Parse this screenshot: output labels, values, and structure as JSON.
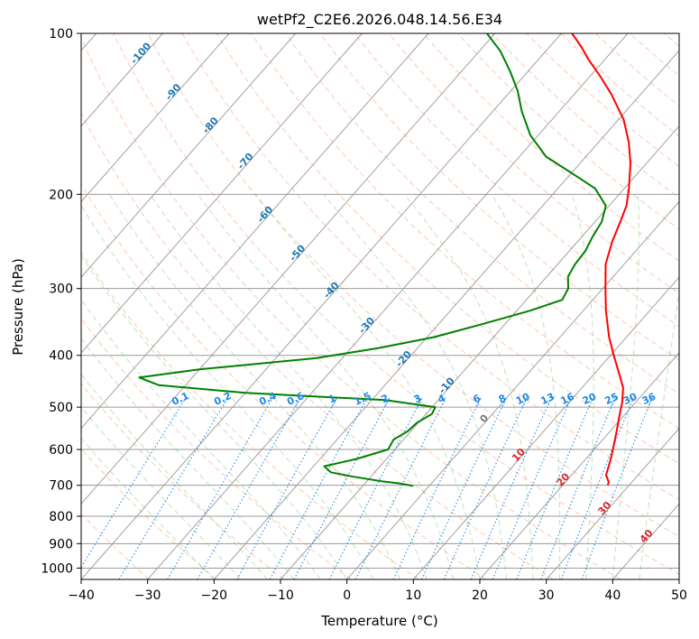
{
  "chart_data": {
    "type": "skew-t log-p sounding",
    "title": "wetPf2_C2E6.2026.048.14.56.E34",
    "xlabel": "Temperature (°C)",
    "ylabel": "Pressure (hPa)",
    "xlim": [
      -40,
      50
    ],
    "ylim": [
      1050,
      100
    ],
    "y_scale": "log",
    "grid": true,
    "x_ticks": [
      "−40",
      "−30",
      "−20",
      "−10",
      "0",
      "10",
      "20",
      "30",
      "40",
      "50"
    ],
    "y_ticks": [
      "100",
      "200",
      "300",
      "400",
      "500",
      "600",
      "700",
      "800",
      "900",
      "1000"
    ],
    "isotherm_labels": [
      {
        "value": -100,
        "text": "-100"
      },
      {
        "value": -90,
        "text": "-90"
      },
      {
        "value": -80,
        "text": "-80"
      },
      {
        "value": -70,
        "text": "-70"
      },
      {
        "value": -60,
        "text": "-60"
      },
      {
        "value": -50,
        "text": "-50"
      },
      {
        "value": -40,
        "text": "-40"
      },
      {
        "value": -30,
        "text": "-30"
      },
      {
        "value": -20,
        "text": "-20"
      },
      {
        "value": -10,
        "text": "-10"
      },
      {
        "value": 0,
        "text": "0"
      },
      {
        "value": 10,
        "text": "10"
      },
      {
        "value": 20,
        "text": "20"
      },
      {
        "value": 30,
        "text": "30"
      },
      {
        "value": 40,
        "text": "40"
      }
    ],
    "mixing_ratio_labels": [
      "0.1",
      "0.2",
      "0.4",
      "0.6",
      "1",
      "1.5",
      "2",
      "3",
      "4",
      "6",
      "8",
      "10",
      "13",
      "16",
      "20",
      "25",
      "30",
      "36"
    ],
    "mixing_ratio_values": [
      0.1,
      0.2,
      0.4,
      0.6,
      1,
      1.5,
      2,
      3,
      4,
      6,
      8,
      10,
      13,
      16,
      20,
      25,
      30,
      36
    ],
    "series": [
      {
        "color": "#ff0000",
        "points": [
          [
            700,
            26.8
          ],
          [
            690,
            26.5
          ],
          [
            670,
            25.2
          ],
          [
            620,
            23.6
          ],
          [
            560,
            21.2
          ],
          [
            520,
            19.4
          ],
          [
            490,
            18.0
          ],
          [
            460,
            16.2
          ],
          [
            440,
            14.4
          ],
          [
            400,
            10.5
          ],
          [
            370,
            7.4
          ],
          [
            330,
            3.4
          ],
          [
            300,
            0.4
          ],
          [
            270,
            -2.8
          ],
          [
            245,
            -4.8
          ],
          [
            225,
            -6.2
          ],
          [
            210,
            -7.4
          ],
          [
            195,
            -9.3
          ],
          [
            175,
            -12.4
          ],
          [
            160,
            -15.4
          ],
          [
            145,
            -19.2
          ],
          [
            130,
            -24.4
          ],
          [
            120,
            -28.6
          ],
          [
            112,
            -32.4
          ],
          [
            106,
            -35.2
          ],
          [
            100,
            -38.4
          ]
        ]
      },
      {
        "color": "#008000",
        "points": [
          [
            702,
            -2.4
          ],
          [
            695,
            -4.6
          ],
          [
            688,
            -7.8
          ],
          [
            675,
            -12.5
          ],
          [
            662,
            -16.6
          ],
          [
            645,
            -18.4
          ],
          [
            625,
            -14.5
          ],
          [
            600,
            -11.0
          ],
          [
            575,
            -11.5
          ],
          [
            555,
            -10.5
          ],
          [
            535,
            -10.2
          ],
          [
            515,
            -9.1
          ],
          [
            500,
            -9.5
          ],
          [
            485,
            -18.0
          ],
          [
            470,
            -40.0
          ],
          [
            455,
            -54.0
          ],
          [
            440,
            -58.0
          ],
          [
            425,
            -50.0
          ],
          [
            405,
            -34.0
          ],
          [
            388,
            -26.0
          ],
          [
            370,
            -19.0
          ],
          [
            350,
            -13.5
          ],
          [
            330,
            -8.0
          ],
          [
            315,
            -4.6
          ],
          [
            300,
            -5.2
          ],
          [
            285,
            -6.8
          ],
          [
            270,
            -7.4
          ],
          [
            255,
            -7.6
          ],
          [
            240,
            -8.4
          ],
          [
            225,
            -9.0
          ],
          [
            210,
            -10.5
          ],
          [
            195,
            -14.4
          ],
          [
            185,
            -18.8
          ],
          [
            170,
            -26.0
          ],
          [
            155,
            -31.2
          ],
          [
            140,
            -35.6
          ],
          [
            128,
            -39.0
          ],
          [
            118,
            -42.6
          ],
          [
            108,
            -46.8
          ],
          [
            100,
            -51.2
          ]
        ]
      }
    ]
  }
}
